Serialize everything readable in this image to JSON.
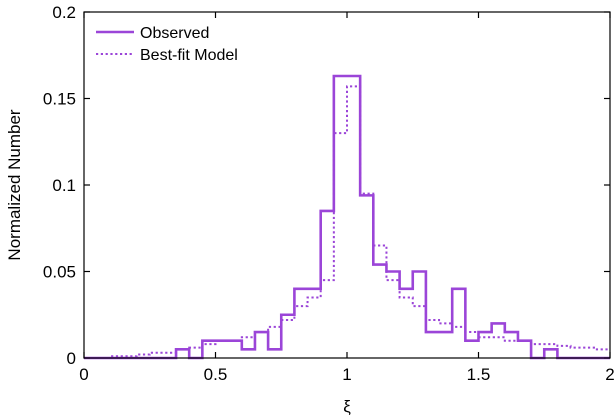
{
  "chart_data": {
    "type": "line",
    "xlabel": "ξ",
    "ylabel": "Normalized Number",
    "xlim": [
      0,
      2
    ],
    "ylim": [
      0,
      0.2
    ],
    "x_ticks": [
      0,
      0.5,
      1,
      1.5,
      2
    ],
    "x_tick_labels": [
      "0",
      "0.5",
      "1",
      "1.5",
      "2"
    ],
    "y_ticks": [
      0,
      0.05,
      0.1,
      0.15,
      0.2
    ],
    "y_tick_labels": [
      "0",
      "0.05",
      "0.1",
      "0.15",
      "0.2"
    ],
    "grid": false,
    "legend_position": "top-left",
    "bin_edges": [
      0,
      0.05,
      0.1,
      0.15,
      0.2,
      0.25,
      0.3,
      0.35,
      0.4,
      0.45,
      0.5,
      0.55,
      0.6,
      0.65,
      0.7,
      0.75,
      0.8,
      0.85,
      0.9,
      0.95,
      1.0,
      1.05,
      1.1,
      1.15,
      1.2,
      1.25,
      1.3,
      1.35,
      1.4,
      1.45,
      1.5,
      1.55,
      1.6,
      1.65,
      1.7,
      1.75,
      1.8,
      1.85,
      1.9,
      1.95,
      2.0
    ],
    "series": [
      {
        "name": "Observed",
        "style": "solid",
        "color": "#9b45d8",
        "values": [
          0,
          0,
          0,
          0,
          0,
          0,
          0,
          0.005,
          0,
          0.01,
          0.01,
          0.01,
          0.005,
          0.015,
          0.005,
          0.025,
          0.04,
          0.04,
          0.085,
          0.163,
          0.163,
          0.094,
          0.054,
          0.05,
          0.04,
          0.05,
          0.015,
          0.015,
          0.04,
          0.01,
          0.015,
          0.02,
          0.015,
          0.01,
          0,
          0.005,
          0,
          0,
          0,
          0
        ]
      },
      {
        "name": "Best-fit Model",
        "style": "dotted",
        "color": "#9b45d8",
        "values": [
          0,
          0,
          0.001,
          0.001,
          0.002,
          0.003,
          0.003,
          0.005,
          0.006,
          0.008,
          0.01,
          0.01,
          0.012,
          0.015,
          0.018,
          0.022,
          0.03,
          0.035,
          0.045,
          0.13,
          0.157,
          0.095,
          0.065,
          0.045,
          0.035,
          0.03,
          0.022,
          0.02,
          0.018,
          0.015,
          0.012,
          0.012,
          0.01,
          0.01,
          0.008,
          0.008,
          0.007,
          0.006,
          0.006,
          0.005
        ]
      }
    ]
  }
}
